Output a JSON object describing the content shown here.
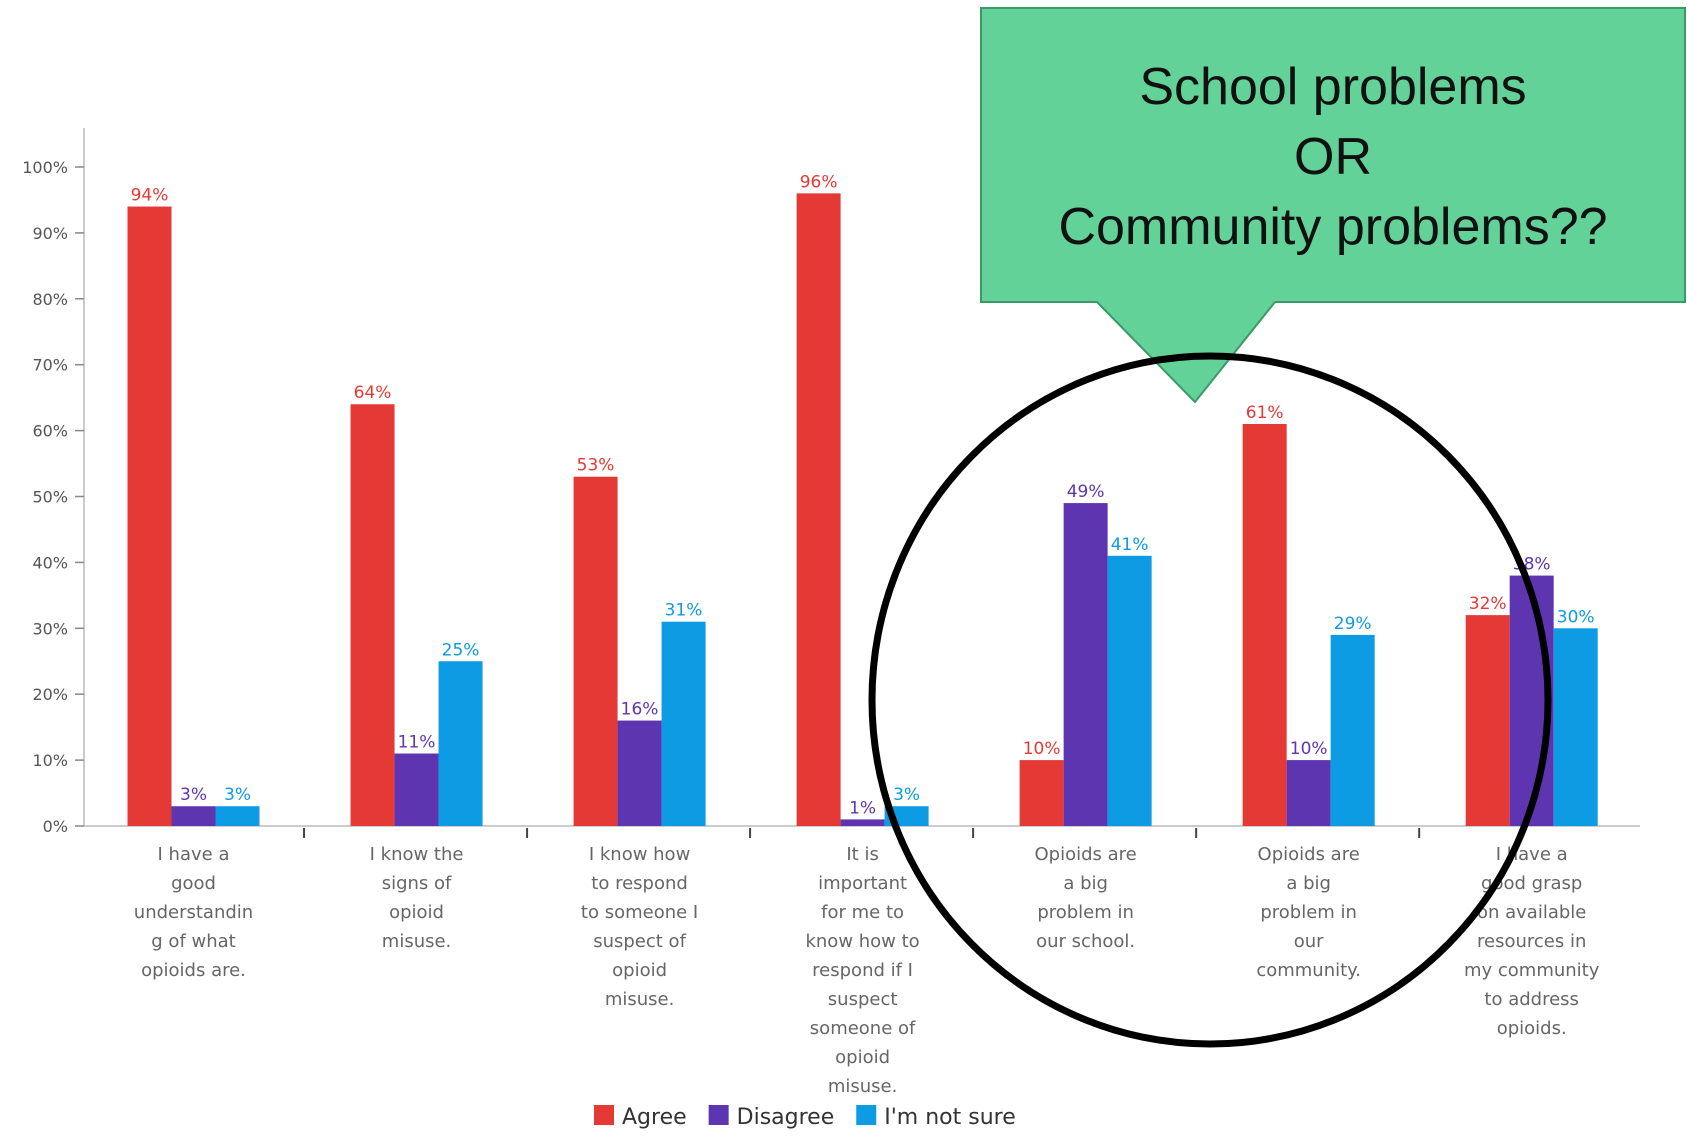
{
  "chart_data": {
    "type": "bar",
    "categories": [
      [
        "I have a",
        "good",
        "understandin",
        "g of what",
        "opioids are."
      ],
      [
        "I know the",
        "signs of",
        "opioid",
        "misuse."
      ],
      [
        "I know how",
        "to respond",
        "to someone I",
        "suspect of",
        "opioid",
        "misuse."
      ],
      [
        "It is",
        "important",
        "for me to",
        "know how to",
        "respond if I",
        "suspect",
        "someone of",
        "opioid",
        "misuse."
      ],
      [
        "Opioids are",
        "a big",
        "problem in",
        "our school."
      ],
      [
        "Opioids are",
        "a big",
        "problem in",
        "our",
        "community."
      ],
      [
        "I have a",
        "good grasp",
        "on available",
        "resources in",
        "my community",
        "to address",
        "opioids."
      ]
    ],
    "series": [
      {
        "name": "Agree",
        "color": "#e53935",
        "values": [
          94,
          64,
          53,
          96,
          10,
          61,
          32
        ]
      },
      {
        "name": "Disagree",
        "color": "#5e35b1",
        "values": [
          3,
          11,
          16,
          1,
          49,
          10,
          38
        ]
      },
      {
        "name": "I'm not sure",
        "color": "#0d9be3",
        "values": [
          3,
          25,
          31,
          3,
          41,
          29,
          30
        ]
      }
    ],
    "data_labels": [
      [
        "94%",
        "64%",
        "53%",
        "96%",
        "10%",
        "61%",
        "32%"
      ],
      [
        "3%",
        "11%",
        "16%",
        "1%",
        "49%",
        "10%",
        "38%"
      ],
      [
        "3%",
        "25%",
        "31%",
        "3%",
        "41%",
        "29%",
        "30%"
      ]
    ],
    "yticks": [
      "0%",
      "10%",
      "20%",
      "30%",
      "40%",
      "50%",
      "60%",
      "70%",
      "80%",
      "90%",
      "100%"
    ],
    "ylim": [
      0,
      100
    ],
    "legend_position": "bottom-center",
    "grid": false
  },
  "callout": {
    "lines": [
      "School problems",
      "OR",
      "Community problems??"
    ],
    "fill": "#63d298",
    "border": "#3a9a66"
  },
  "highlight_circle": {
    "stroke": "#000000"
  }
}
